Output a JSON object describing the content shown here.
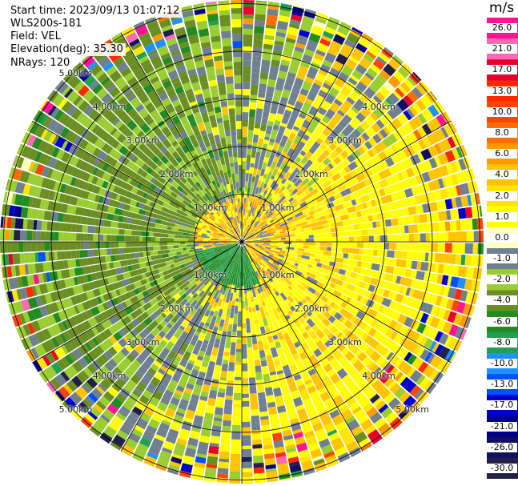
{
  "header": {
    "start_time": "Start time: 2023/09/13 01:07:12",
    "station": "WLS200s-181",
    "field": "Field: VEL",
    "elevation": "Elevation(deg): 35.30",
    "nrays": "NRays: 120"
  },
  "colorbar": {
    "unit": "m/s",
    "ticks": [
      "26.0",
      "21.0",
      "17.0",
      "13.0",
      "10.0",
      "8.0",
      "6.0",
      "4.0",
      "2.0",
      "1.0",
      "0.0",
      "-1.0",
      "-2.0",
      "-4.0",
      "-6.0",
      "-8.0",
      "-10.0",
      "-13.0",
      "-17.0",
      "-21.0",
      "-26.0",
      "-30.0"
    ],
    "colors": [
      "#ff1493",
      "#ff69b4",
      "#e8002a",
      "#ff2a00",
      "#ff4500",
      "#ff6e00",
      "#ff9b00",
      "#ffc300",
      "#ffe500",
      "#ffff00",
      "#ffffc0",
      "#708090",
      "#9acd32",
      "#6b8e23",
      "#228b22",
      "#20a050",
      "#1e90ff",
      "#0050ff",
      "#0000cd",
      "#00008b",
      "#101060",
      "#202048"
    ]
  },
  "chart_data": {
    "type": "ppi-polar",
    "field": "VEL",
    "unit": "m/s",
    "rays": 120,
    "range_rings_km": [
      1.0,
      2.0,
      3.0,
      4.0,
      5.0
    ],
    "ring_labels": [
      "1.00km",
      "2.00km",
      "3.00km",
      "4.00km",
      "5.00km"
    ],
    "spoke_angles_deg": [
      0,
      30,
      60,
      90,
      120,
      150,
      180,
      210,
      240,
      270,
      300,
      330
    ],
    "pattern": {
      "northwest_sector": "-2.0 to -4.0 (green)",
      "southeast_sector": "2.0 to 4.0 (yellow)",
      "center_near": "mixed near-zero with green inner core",
      "outer_edge": "noisy speckle across full scale"
    }
  }
}
